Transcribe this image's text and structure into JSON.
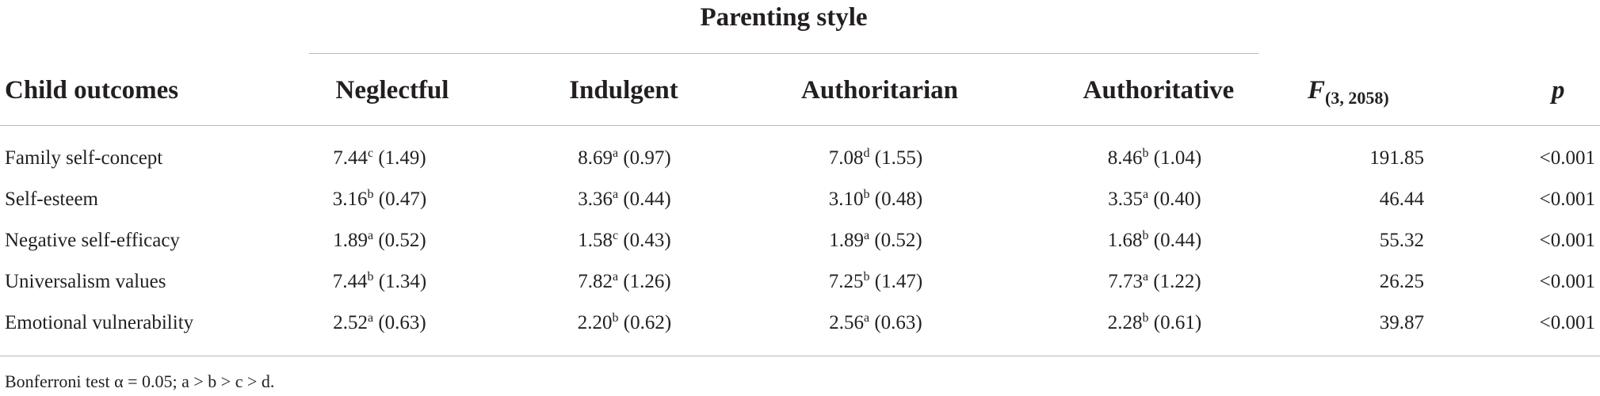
{
  "table": {
    "group_header": "Parenting style",
    "columns": {
      "outcome": "Child outcomes",
      "styles": [
        "Neglectful",
        "Indulgent",
        "Authoritarian",
        "Authoritative"
      ],
      "f_main": "F",
      "f_sub": "(3, 2058)",
      "p": "p"
    },
    "rows": [
      {
        "label": "Family self-concept",
        "cells": [
          {
            "mean": "7.44",
            "sup": "c",
            "sd": "(1.49)"
          },
          {
            "mean": "8.69",
            "sup": "a",
            "sd": "(0.97)"
          },
          {
            "mean": "7.08",
            "sup": "d",
            "sd": "(1.55)"
          },
          {
            "mean": "8.46",
            "sup": "b",
            "sd": "(1.04)"
          }
        ],
        "f": "191.85",
        "p": "<0.001"
      },
      {
        "label": "Self-esteem",
        "cells": [
          {
            "mean": "3.16",
            "sup": "b",
            "sd": "(0.47)"
          },
          {
            "mean": "3.36",
            "sup": "a",
            "sd": "(0.44)"
          },
          {
            "mean": "3.10",
            "sup": "b",
            "sd": "(0.48)"
          },
          {
            "mean": "3.35",
            "sup": "a",
            "sd": "(0.40)"
          }
        ],
        "f": "46.44",
        "p": "<0.001"
      },
      {
        "label": "Negative self-efficacy",
        "cells": [
          {
            "mean": "1.89",
            "sup": "a",
            "sd": "(0.52)"
          },
          {
            "mean": "1.58",
            "sup": "c",
            "sd": "(0.43)"
          },
          {
            "mean": "1.89",
            "sup": "a",
            "sd": "(0.52)"
          },
          {
            "mean": "1.68",
            "sup": "b",
            "sd": "(0.44)"
          }
        ],
        "f": "55.32",
        "p": "<0.001"
      },
      {
        "label": "Universalism values",
        "cells": [
          {
            "mean": "7.44",
            "sup": "b",
            "sd": "(1.34)"
          },
          {
            "mean": "7.82",
            "sup": "a",
            "sd": "(1.26)"
          },
          {
            "mean": "7.25",
            "sup": "b",
            "sd": "(1.47)"
          },
          {
            "mean": "7.73",
            "sup": "a",
            "sd": "(1.22)"
          }
        ],
        "f": "26.25",
        "p": "<0.001"
      },
      {
        "label": "Emotional vulnerability",
        "cells": [
          {
            "mean": "2.52",
            "sup": "a",
            "sd": "(0.63)"
          },
          {
            "mean": "2.20",
            "sup": "b",
            "sd": "(0.62)"
          },
          {
            "mean": "2.56",
            "sup": "a",
            "sd": "(0.63)"
          },
          {
            "mean": "2.28",
            "sup": "b",
            "sd": "(0.61)"
          }
        ],
        "f": "39.87",
        "p": "<0.001"
      }
    ],
    "note": "Bonferroni test α = 0.05; a > b > c > d."
  }
}
